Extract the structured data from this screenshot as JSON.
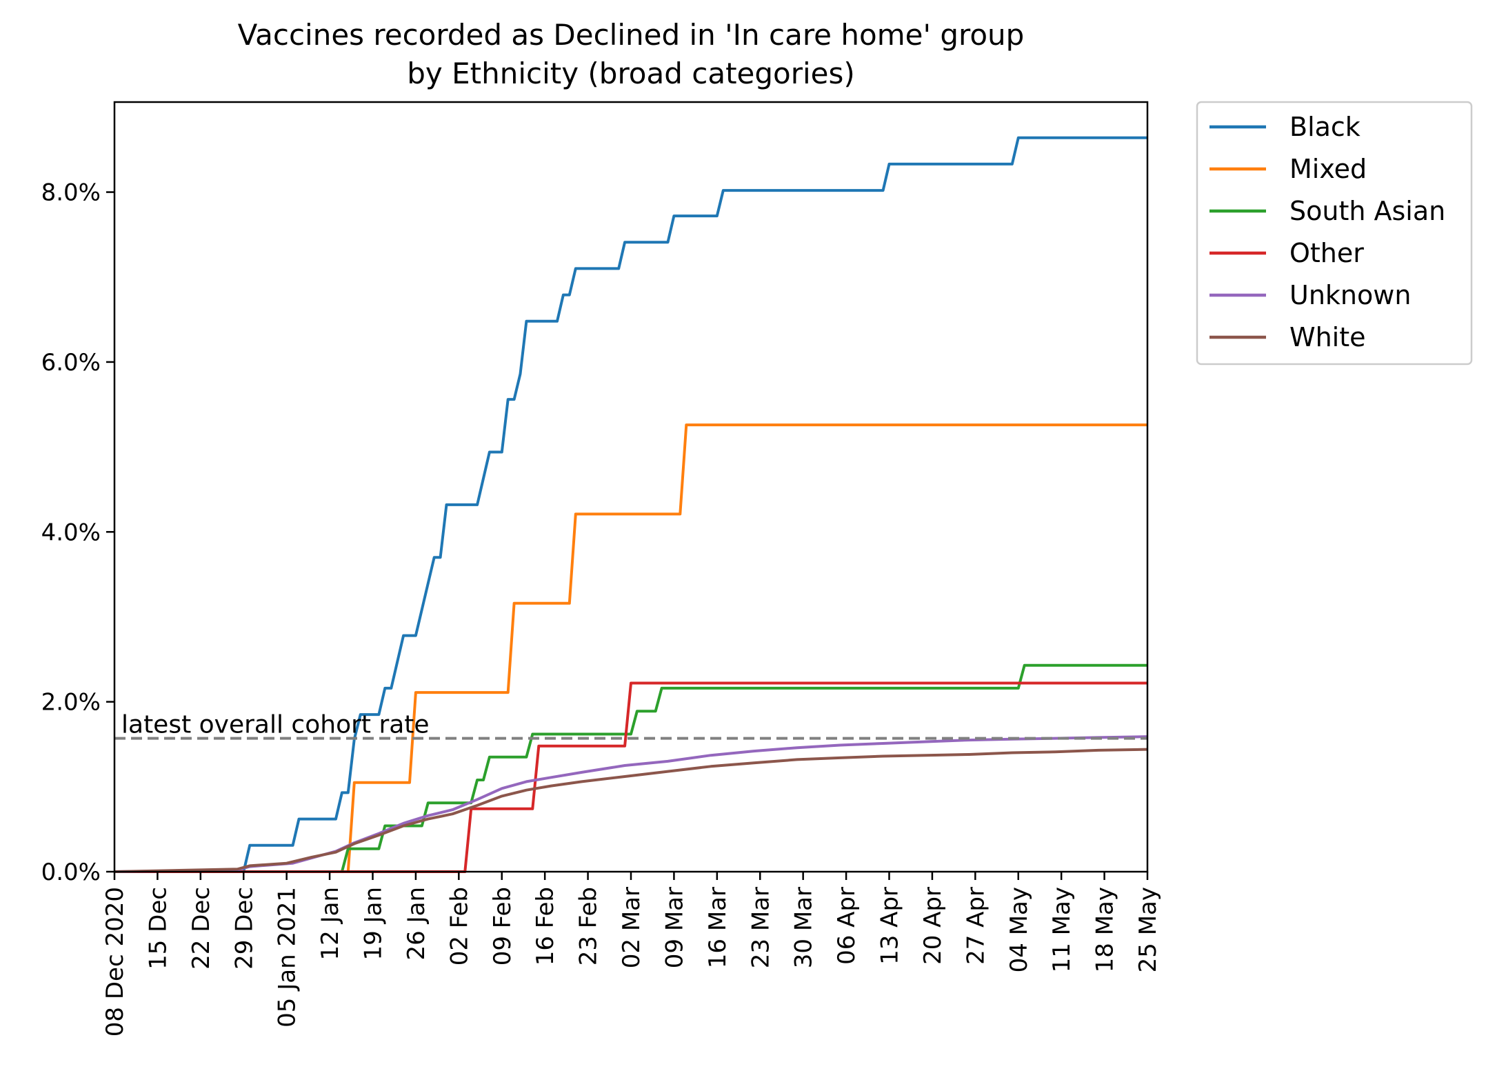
{
  "chart_data": {
    "type": "line",
    "title": "Vaccines recorded as Declined in 'In care home' group",
    "subtitle": "by Ethnicity (broad categories)",
    "xlabel": "",
    "ylabel": "",
    "x_is_date": true,
    "xlim": [
      "2020-12-08",
      "2021-05-25"
    ],
    "ylim": [
      0,
      9.06
    ],
    "y_tick_values": [
      0,
      2,
      4,
      6,
      8
    ],
    "y_tick_labels": [
      "0.0%",
      "2.0%",
      "4.0%",
      "6.0%",
      "8.0%"
    ],
    "x_tick_values": [
      "2020-12-08",
      "2020-12-15",
      "2020-12-22",
      "2020-12-29",
      "2021-01-05",
      "2021-01-12",
      "2021-01-19",
      "2021-01-26",
      "2021-02-02",
      "2021-02-09",
      "2021-02-16",
      "2021-02-23",
      "2021-03-02",
      "2021-03-09",
      "2021-03-16",
      "2021-03-23",
      "2021-03-30",
      "2021-04-06",
      "2021-04-13",
      "2021-04-20",
      "2021-04-27",
      "2021-05-04",
      "2021-05-11",
      "2021-05-18",
      "2021-05-25"
    ],
    "x_tick_labels": [
      "08 Dec 2020",
      "15 Dec",
      "22 Dec",
      "29 Dec",
      "05 Jan 2021",
      "12 Jan",
      "19 Jan",
      "26 Jan",
      "02 Feb",
      "09 Feb",
      "16 Feb",
      "23 Feb",
      "02 Mar",
      "09 Mar",
      "16 Mar",
      "23 Mar",
      "30 Mar",
      "06 Apr",
      "13 Apr",
      "20 Apr",
      "27 Apr",
      "04 May",
      "11 May",
      "18 May",
      "25 May"
    ],
    "grid": false,
    "legend_position": "outside-right",
    "reference_line": {
      "value": 1.57,
      "label": "latest overall cohort rate",
      "color": "#808080",
      "style": "dashed"
    },
    "series": [
      {
        "name": "Black",
        "color": "#1f77b4",
        "points": [
          [
            "2020-12-08",
            0
          ],
          [
            "2020-12-29",
            0
          ],
          [
            "2020-12-30",
            0.31
          ],
          [
            "2021-01-06",
            0.31
          ],
          [
            "2021-01-07",
            0.62
          ],
          [
            "2021-01-13",
            0.62
          ],
          [
            "2021-01-14",
            0.93
          ],
          [
            "2021-01-15",
            0.93
          ],
          [
            "2021-01-16",
            1.56
          ],
          [
            "2021-01-17",
            1.85
          ],
          [
            "2021-01-20",
            1.85
          ],
          [
            "2021-01-21",
            2.16
          ],
          [
            "2021-01-22",
            2.16
          ],
          [
            "2021-01-24",
            2.78
          ],
          [
            "2021-01-26",
            2.78
          ],
          [
            "2021-01-29",
            3.7
          ],
          [
            "2021-01-30",
            3.7
          ],
          [
            "2021-01-31",
            4.32
          ],
          [
            "2021-02-05",
            4.32
          ],
          [
            "2021-02-07",
            4.94
          ],
          [
            "2021-02-09",
            4.94
          ],
          [
            "2021-02-10",
            5.56
          ],
          [
            "2021-02-11",
            5.56
          ],
          [
            "2021-02-12",
            5.86
          ],
          [
            "2021-02-13",
            6.48
          ],
          [
            "2021-02-18",
            6.48
          ],
          [
            "2021-02-19",
            6.79
          ],
          [
            "2021-02-20",
            6.79
          ],
          [
            "2021-02-21",
            7.1
          ],
          [
            "2021-02-28",
            7.1
          ],
          [
            "2021-03-01",
            7.41
          ],
          [
            "2021-03-08",
            7.41
          ],
          [
            "2021-03-09",
            7.72
          ],
          [
            "2021-03-16",
            7.72
          ],
          [
            "2021-03-17",
            8.02
          ],
          [
            "2021-04-12",
            8.02
          ],
          [
            "2021-04-13",
            8.33
          ],
          [
            "2021-05-03",
            8.33
          ],
          [
            "2021-05-04",
            8.64
          ],
          [
            "2021-05-25",
            8.64
          ]
        ]
      },
      {
        "name": "Mixed",
        "color": "#ff7f0e",
        "points": [
          [
            "2020-12-08",
            0
          ],
          [
            "2021-01-15",
            0
          ],
          [
            "2021-01-16",
            1.05
          ],
          [
            "2021-01-25",
            1.05
          ],
          [
            "2021-01-26",
            2.11
          ],
          [
            "2021-02-10",
            2.11
          ],
          [
            "2021-02-11",
            3.16
          ],
          [
            "2021-02-20",
            3.16
          ],
          [
            "2021-02-21",
            4.21
          ],
          [
            "2021-03-10",
            4.21
          ],
          [
            "2021-03-11",
            5.26
          ],
          [
            "2021-05-25",
            5.26
          ]
        ]
      },
      {
        "name": "South Asian",
        "color": "#2ca02c",
        "points": [
          [
            "2020-12-08",
            0
          ],
          [
            "2021-01-14",
            0
          ],
          [
            "2021-01-15",
            0.27
          ],
          [
            "2021-01-20",
            0.27
          ],
          [
            "2021-01-21",
            0.54
          ],
          [
            "2021-01-27",
            0.54
          ],
          [
            "2021-01-28",
            0.81
          ],
          [
            "2021-02-04",
            0.81
          ],
          [
            "2021-02-05",
            1.08
          ],
          [
            "2021-02-06",
            1.08
          ],
          [
            "2021-02-07",
            1.35
          ],
          [
            "2021-02-13",
            1.35
          ],
          [
            "2021-02-14",
            1.62
          ],
          [
            "2021-03-02",
            1.62
          ],
          [
            "2021-03-03",
            1.89
          ],
          [
            "2021-03-06",
            1.89
          ],
          [
            "2021-03-07",
            2.16
          ],
          [
            "2021-05-04",
            2.16
          ],
          [
            "2021-05-05",
            2.43
          ],
          [
            "2021-05-25",
            2.43
          ]
        ]
      },
      {
        "name": "Other",
        "color": "#d62728",
        "points": [
          [
            "2020-12-08",
            0
          ],
          [
            "2021-02-03",
            0
          ],
          [
            "2021-02-04",
            0.74
          ],
          [
            "2021-02-14",
            0.74
          ],
          [
            "2021-02-15",
            1.48
          ],
          [
            "2021-03-01",
            1.48
          ],
          [
            "2021-03-02",
            2.22
          ],
          [
            "2021-05-25",
            2.22
          ]
        ]
      },
      {
        "name": "Unknown",
        "color": "#9467bd",
        "points": [
          [
            "2020-12-08",
            0
          ],
          [
            "2020-12-28",
            0.02
          ],
          [
            "2020-12-30",
            0.06
          ],
          [
            "2021-01-06",
            0.1
          ],
          [
            "2021-01-10",
            0.18
          ],
          [
            "2021-01-13",
            0.24
          ],
          [
            "2021-01-16",
            0.34
          ],
          [
            "2021-01-20",
            0.45
          ],
          [
            "2021-01-24",
            0.57
          ],
          [
            "2021-01-28",
            0.66
          ],
          [
            "2021-02-01",
            0.73
          ],
          [
            "2021-02-05",
            0.85
          ],
          [
            "2021-02-09",
            0.98
          ],
          [
            "2021-02-13",
            1.06
          ],
          [
            "2021-02-17",
            1.11
          ],
          [
            "2021-02-22",
            1.17
          ],
          [
            "2021-03-01",
            1.25
          ],
          [
            "2021-03-08",
            1.3
          ],
          [
            "2021-03-15",
            1.37
          ],
          [
            "2021-03-22",
            1.42
          ],
          [
            "2021-03-29",
            1.46
          ],
          [
            "2021-04-05",
            1.49
          ],
          [
            "2021-04-12",
            1.51
          ],
          [
            "2021-04-19",
            1.53
          ],
          [
            "2021-04-26",
            1.55
          ],
          [
            "2021-05-03",
            1.56
          ],
          [
            "2021-05-10",
            1.57
          ],
          [
            "2021-05-17",
            1.58
          ],
          [
            "2021-05-25",
            1.59
          ]
        ]
      },
      {
        "name": "White",
        "color": "#8c564b",
        "points": [
          [
            "2020-12-08",
            0
          ],
          [
            "2020-12-28",
            0.03
          ],
          [
            "2020-12-30",
            0.07
          ],
          [
            "2021-01-05",
            0.1
          ],
          [
            "2021-01-09",
            0.17
          ],
          [
            "2021-01-13",
            0.23
          ],
          [
            "2021-01-16",
            0.33
          ],
          [
            "2021-01-20",
            0.43
          ],
          [
            "2021-01-24",
            0.54
          ],
          [
            "2021-01-28",
            0.62
          ],
          [
            "2021-02-01",
            0.68
          ],
          [
            "2021-02-05",
            0.78
          ],
          [
            "2021-02-09",
            0.89
          ],
          [
            "2021-02-13",
            0.96
          ],
          [
            "2021-02-17",
            1.01
          ],
          [
            "2021-02-22",
            1.06
          ],
          [
            "2021-03-01",
            1.12
          ],
          [
            "2021-03-08",
            1.18
          ],
          [
            "2021-03-15",
            1.24
          ],
          [
            "2021-03-22",
            1.28
          ],
          [
            "2021-03-29",
            1.32
          ],
          [
            "2021-04-05",
            1.34
          ],
          [
            "2021-04-12",
            1.36
          ],
          [
            "2021-04-19",
            1.37
          ],
          [
            "2021-04-26",
            1.38
          ],
          [
            "2021-05-03",
            1.4
          ],
          [
            "2021-05-10",
            1.41
          ],
          [
            "2021-05-17",
            1.43
          ],
          [
            "2021-05-25",
            1.44
          ]
        ]
      }
    ]
  }
}
